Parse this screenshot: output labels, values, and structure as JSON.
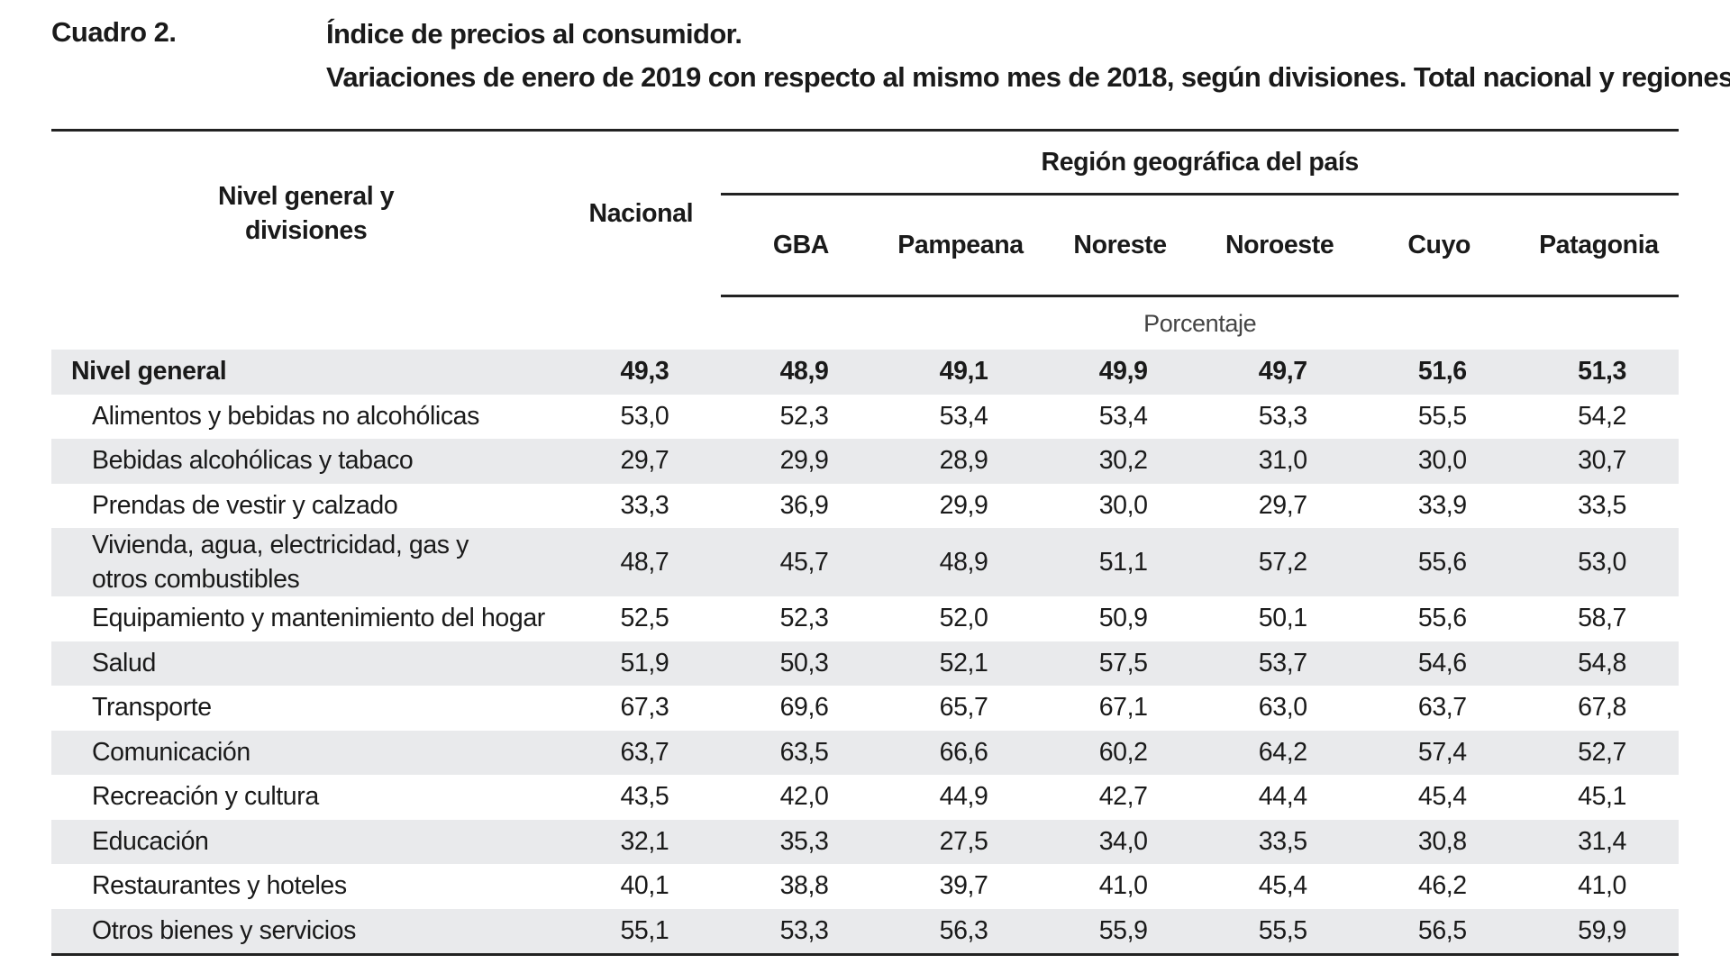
{
  "heading": {
    "cuadro": "Cuadro 2.",
    "title_line1": "Índice de precios al consumidor.",
    "title_line2": "Variaciones de enero de 2019 con respecto al mismo mes de 2018, según divisiones. Total nacional y regiones"
  },
  "table": {
    "row_header": "Nivel general y divisiones",
    "nacional_header": "Nacional",
    "region_header": "Región geográfica del país",
    "regions": [
      "GBA",
      "Pampeana",
      "Noreste",
      "Noroeste",
      "Cuyo",
      "Patagonia"
    ],
    "unit": "Porcentaje",
    "rows": [
      {
        "name": "Nivel general",
        "values": [
          "49,3",
          "48,9",
          "49,1",
          "49,9",
          "49,7",
          "51,6",
          "51,3"
        ]
      },
      {
        "name": "Alimentos y bebidas no alcohólicas",
        "values": [
          "53,0",
          "52,3",
          "53,4",
          "53,4",
          "53,3",
          "55,5",
          "54,2"
        ]
      },
      {
        "name": "Bebidas alcohólicas y tabaco",
        "values": [
          "29,7",
          "29,9",
          "28,9",
          "30,2",
          "31,0",
          "30,0",
          "30,7"
        ]
      },
      {
        "name": "Prendas de vestir y calzado",
        "values": [
          "33,3",
          "36,9",
          "29,9",
          "30,0",
          "29,7",
          "33,9",
          "33,5"
        ]
      },
      {
        "name": "Vivienda, agua, electricidad, gas y otros combustibles",
        "values": [
          "48,7",
          "45,7",
          "48,9",
          "51,1",
          "57,2",
          "55,6",
          "53,0"
        ]
      },
      {
        "name": "Equipamiento y mantenimiento del hogar",
        "values": [
          "52,5",
          "52,3",
          "52,0",
          "50,9",
          "50,1",
          "55,6",
          "58,7"
        ]
      },
      {
        "name": "Salud",
        "values": [
          "51,9",
          "50,3",
          "52,1",
          "57,5",
          "53,7",
          "54,6",
          "54,8"
        ]
      },
      {
        "name": "Transporte",
        "values": [
          "67,3",
          "69,6",
          "65,7",
          "67,1",
          "63,0",
          "63,7",
          "67,8"
        ]
      },
      {
        "name": "Comunicación",
        "values": [
          "63,7",
          "63,5",
          "66,6",
          "60,2",
          "64,2",
          "57,4",
          "52,7"
        ]
      },
      {
        "name": "Recreación y cultura",
        "values": [
          "43,5",
          "42,0",
          "44,9",
          "42,7",
          "44,4",
          "45,4",
          "45,1"
        ]
      },
      {
        "name": "Educación",
        "values": [
          "32,1",
          "35,3",
          "27,5",
          "34,0",
          "33,5",
          "30,8",
          "31,4"
        ]
      },
      {
        "name": "Restaurantes y hoteles",
        "values": [
          "40,1",
          "38,8",
          "39,7",
          "41,0",
          "45,4",
          "46,2",
          "41,0"
        ]
      },
      {
        "name": "Otros bienes y servicios",
        "values": [
          "55,1",
          "53,3",
          "56,3",
          "55,9",
          "55,5",
          "56,5",
          "59,9"
        ]
      }
    ]
  }
}
